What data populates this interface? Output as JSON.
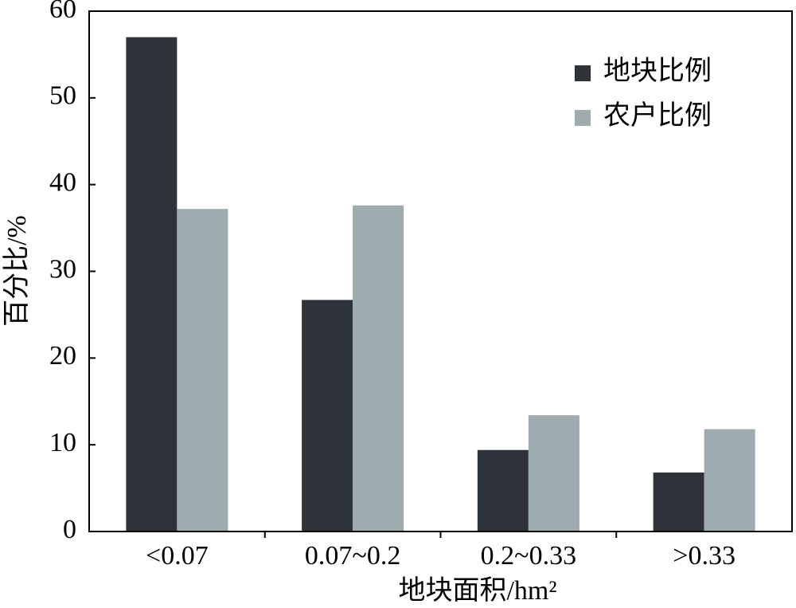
{
  "chart_data": {
    "type": "bar",
    "xlabel": "地块面积/hm²",
    "ylabel": "百分比/%",
    "categories": [
      "<0.07",
      "0.07~0.2",
      "0.2~0.33",
      ">0.33"
    ],
    "series": [
      {
        "name": "地块比例",
        "color": "#2e333a",
        "values": [
          57.0,
          26.7,
          9.4,
          6.8
        ]
      },
      {
        "name": "农户比例",
        "color": "#9eabaf",
        "values": [
          37.2,
          37.6,
          13.4,
          11.8
        ]
      }
    ],
    "ylim": [
      0,
      60
    ],
    "yticks": [
      0,
      10,
      20,
      30,
      40,
      50,
      60
    ],
    "legend": "upper-right"
  }
}
